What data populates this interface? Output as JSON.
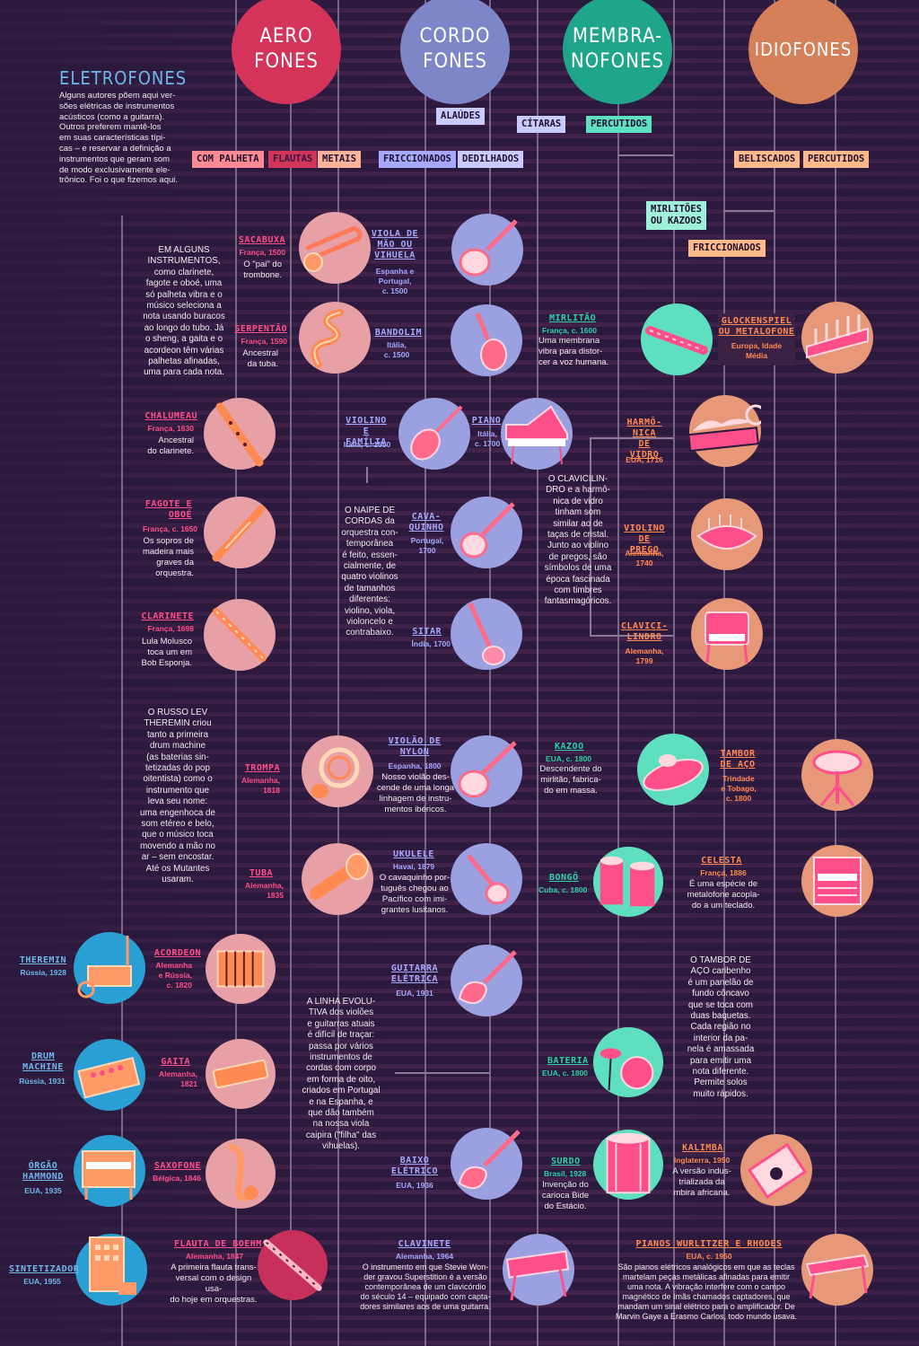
{
  "headers": {
    "aerofones": "AERO\nFONES",
    "cordofones": "CORDO\nFONES",
    "membranofones": "MEMBRA-\nNOFONES",
    "idiofones": "IDIOFONES"
  },
  "colors": {
    "aero": "#d4335a",
    "cordo": "#7f86c8",
    "membrano": "#1fa68a",
    "idio": "#d6805a",
    "bg": "#2b1a3d",
    "pink": "#ff4f8a",
    "blue": "#6fb6e8"
  },
  "eletrofones": {
    "title": "ELETROFONES",
    "text": "Alguns autores põem aqui ver-\nsões elétricas de instrumentos\nacústicos (como a guitarra).\nOutros preferem mantê-los\nem suas características típi-\ncas – e reservar a definição a\ninstrumentos que geram som\nde modo exclusivamente ele-\ntrônico. Foi o que fizemos aqui."
  },
  "tags": {
    "com_palheta": "COM PALHETA",
    "flautas": "FLAUTAS",
    "metais": "METAIS",
    "alaudes": "ALAÚDES",
    "friccionados_cordo": "FRICCIONADOS",
    "dedilhados": "DEDILHADOS",
    "citaras": "CÍTARAS",
    "percutidos_membrano": "PERCUTIDOS",
    "mirlitoes": "MIRLITÕES\nOU KAZOOS",
    "friccionados_idio": "FRICCIONADOS",
    "beliscados": "BELISCADOS",
    "percutidos_idio": "PERCUTIDOS"
  },
  "notes": {
    "palheta": "EM ALGUNS\nINSTRUMENTOS, como clarinete,\nfagote e oboé, uma\nsó palheta vibra e o\nmúsico seleciona a\nnota usando buracos\nao longo do tubo. Já\no sheng, a gaita e o\nacordeon têm várias\npalhetas afinadas,\numa para cada nota.",
    "theremin": "O RUSSO LEV\nTHEREMIN criou\ntanto a primeira\ndrum machine\n(as baterias sin-\ntetizadas do pop\noitentista) como o\ninstrumento que\nleva seu nome:\numa engenhoca de\nsom etéreo e belo,\nque o músico toca\nmovendo a mão no\nar – sem encostar.\nAté os Mutantes\nusaram.",
    "naipe": "O NAIPE DE\nCORDAS da\norquestra con-\ntemporânea\né feito, essen-\ncialmente, de\nquatro violinos\nde tamanhos\ndiferentes:\nviolino, viola,\nvioloncelo e\ncontrabaixo.",
    "clavicilindro": "O CLAVICILIN-\nDRO e a harmô-\nnica de vidro\ntinham som\nsimilar ao de\ntaças de cristal.\nJunto ao violino\nde pregos, são\nsímbolos de uma\népoca fascinada\ncom timbres\nfantasmagóricos.",
    "linha": "A LINHA EVOLU-\nTIVA dos violões\ne guitarras atuais\né difícil de traçar:\npassa por vários\ninstrumentos de\ncordas com corpo\nem forma de oito,\ncriados em Portugal\ne na Espanha, e\nque dão também\nna nossa viola\ncaipira (\"filha\" das\nvihuelas).",
    "tambor": "O TAMBOR DE\nAÇO caribenho\né um panelão de\nfundo côncavo\nque se toca com\nduas baquetas.\nCada região no\ninterior da pa-\nnela é amassada\npara emitir uma\nnota diferente.\nPermite solos\nmuito rápidos."
  },
  "instruments": {
    "sacabuxa": {
      "name": "SACABUXA",
      "meta": "França, 1500",
      "desc": "O \"pai\" do\ntrombone."
    },
    "serpentao": {
      "name": "SERPENTÃO",
      "meta": "França, 1590",
      "desc": "Ancestral\nda tuba."
    },
    "chalumeau": {
      "name": "CHALUMEAU",
      "meta": "França, 1630",
      "desc": "Ancestral\ndo clarinete."
    },
    "fagote": {
      "name": "FAGOTE E\nOBOÉ",
      "meta": "França, c. 1650",
      "desc": "Os sopros de\nmadeira mais\ngraves da\norquestra."
    },
    "clarinete": {
      "name": "CLARINETE",
      "meta": "França, 1698",
      "desc": "Lula Molusco\ntoca um em\nBob Esponja."
    },
    "trompa": {
      "name": "TROMPA",
      "meta": "Alemanha,\n1818",
      "desc": ""
    },
    "tuba": {
      "name": "TUBA",
      "meta": "Alemanha,\n1835",
      "desc": ""
    },
    "acordeon": {
      "name": "ACORDEON",
      "meta": "Alemanha\ne Rússia,\nc. 1820",
      "desc": ""
    },
    "gaita": {
      "name": "GAITA",
      "meta": "Alemanha,\n1821",
      "desc": ""
    },
    "saxofone": {
      "name": "SAXOFONE",
      "meta": "Bélgica, 1846",
      "desc": ""
    },
    "flauta": {
      "name": "FLAUTA DE BOEHM",
      "meta": "Alemanha, 1847",
      "desc": "A primeira flauta trans-\nversal com o design usa-\ndo hoje em orquestras."
    },
    "viola_mao": {
      "name": "VIOLA DE\nMÃO OU\nVIHUELA",
      "meta": "Espanha e\nPortugal,\nc. 1500",
      "desc": ""
    },
    "bandolim": {
      "name": "BANDOLIM",
      "meta": "Itália,\nc. 1500",
      "desc": ""
    },
    "violino": {
      "name": "VIOLINO\nE FAMÍLIA",
      "meta": "Itália, c. 1550",
      "desc": ""
    },
    "piano": {
      "name": "PIANO",
      "meta": "Itália,\nc. 1700",
      "desc": ""
    },
    "cavaquinho": {
      "name": "CAVA-\nQUINHO",
      "meta": "Portugal,\n1700",
      "desc": ""
    },
    "sitar": {
      "name": "SITAR",
      "meta": "Índia, 1700",
      "desc": ""
    },
    "violao": {
      "name": "VIOLÃO DE\nNYLON",
      "meta": "Espanha, 1800",
      "desc": "Nosso violão des-\ncende de uma longa\nlinhagem de instru-\nmentos ibéricos."
    },
    "ukulele": {
      "name": "UKULELE",
      "meta": "Havaí, 1879",
      "desc": "O cavaquinho por-\ntuguês chegou ao\nPacífico com imi-\ngrantes lusitanos."
    },
    "guitarra": {
      "name": "GUITARRA\nELÉTRICA",
      "meta": "EUA, 1931",
      "desc": ""
    },
    "baixo": {
      "name": "BAIXO\nELÉTRICO",
      "meta": "EUA, 1936",
      "desc": ""
    },
    "clavinete": {
      "name": "CLAVINETE",
      "meta": "Alemanha, 1964",
      "desc": "O instrumento em que Stevie Won-\nder gravou Superstition é a versão\ncontemporânea de um clavicórdio\ndo século 14 – equipado com capta-\ndores similares aos de uma guitarra."
    },
    "mirlitao": {
      "name": "MIRLITÃO",
      "meta": "França, c. 1600",
      "desc": "Uma membrana\nvibra para distor-\ncer a voz humana."
    },
    "kazoo": {
      "name": "KAZOO",
      "meta": "EUA, c. 1800",
      "desc": "Descendente do\nmirlitão, fabrica-\ndo em massa."
    },
    "bongo": {
      "name": "BONGÔ",
      "meta": "Cuba, c. 1800",
      "desc": ""
    },
    "bateria": {
      "name": "BATERIA",
      "meta": "EUA, c. 1800",
      "desc": ""
    },
    "surdo": {
      "name": "SURDO",
      "meta": "Brasil, 1928",
      "desc": "Invenção do\ncarioca Bide\ndo Estácio."
    },
    "glockenspiel": {
      "name": "GLOCKENSPIEL\nOU METALOFONE",
      "meta": "Europa, Idade\nMédia",
      "desc": ""
    },
    "harmonica": {
      "name": "HARMÔ-\nNICA DE\nVIDRO",
      "meta": "EUA, 1716",
      "desc": ""
    },
    "violino_pregos": {
      "name": "VIOLINO\nDE PREGO",
      "meta": "Alemanha,\n1740",
      "desc": ""
    },
    "clavicilindro": {
      "name": "CLAVICI-\nLINDRO",
      "meta": "Alemanha,\n1799",
      "desc": ""
    },
    "tambor_aco": {
      "name": "TAMBOR\nDE AÇO",
      "meta": "Trindade\ne Tobago,\nc. 1800",
      "desc": ""
    },
    "celesta": {
      "name": "CELESTA",
      "meta": "França, 1886",
      "desc": "É uma espécie de\nmetalofone acopla-\ndo a um teclado."
    },
    "kalimba": {
      "name": "KALIMBA",
      "meta": "Inglaterra, 1950",
      "desc": "A versão indus-\ntrializada da\nmbira africana."
    },
    "wurlitzer": {
      "name": "PIANOS WURLITZER E RHODES",
      "meta": "EUA, c. 1950",
      "desc": "São pianos elétricos analógicos em que as teclas\nmartelam peças metálicas afinadas para emitir\numa nota. A vibração interfere com o campo\nmagnético de ímãs chamados captadores, que\nmandam um sinal elétrico para o amplificador. De\nMarvin Gaye a Erasmo Carlos, todo mundo usava."
    },
    "theremin": {
      "name": "THEREMIN",
      "meta": "Rússia, 1928",
      "desc": ""
    },
    "drum": {
      "name": "DRUM\nMACHINE",
      "meta": "Rússia, 1931",
      "desc": ""
    },
    "orgao": {
      "name": "ÓRGÃO\nHAMMOND",
      "meta": "EUA, 1935",
      "desc": ""
    },
    "sintetizador": {
      "name": "SINTETIZADOR",
      "meta": "EUA, 1955",
      "desc": ""
    }
  }
}
